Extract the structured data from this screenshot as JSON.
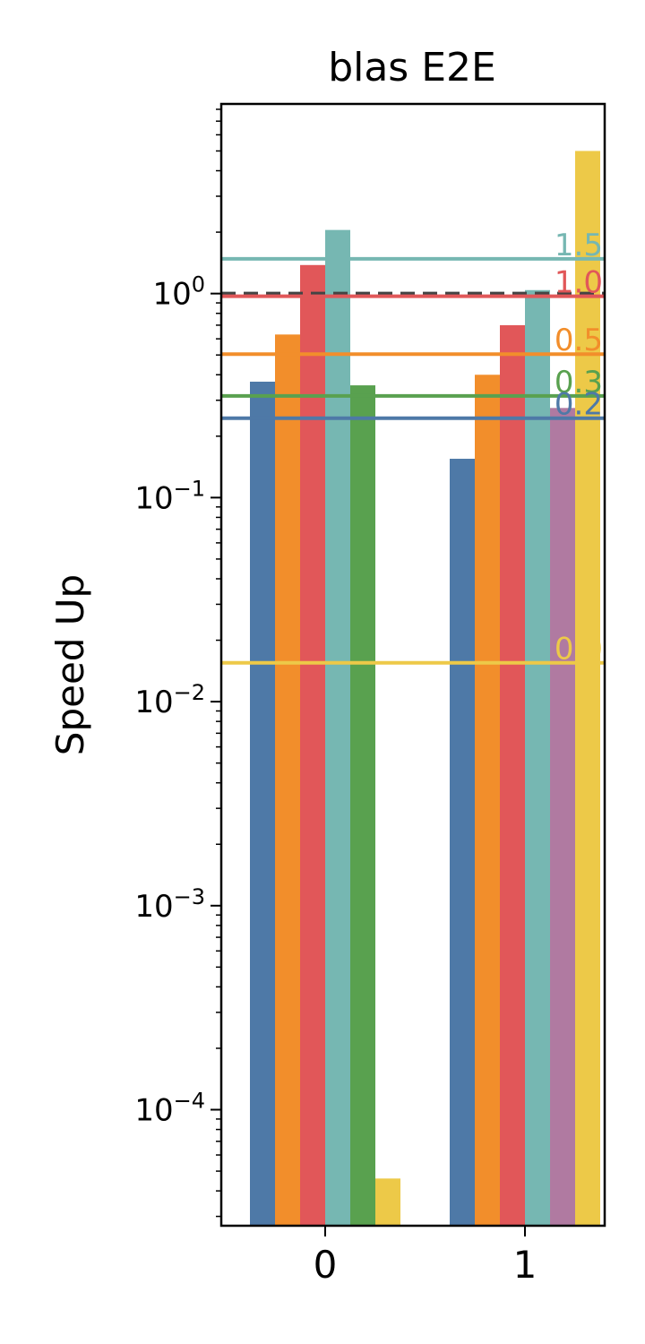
{
  "chart_data": {
    "type": "bar",
    "title": "blas E2E",
    "xlabel": "",
    "ylabel": "Speed Up",
    "y_scale": "log",
    "ylim": [
      2.7e-05,
      8.5
    ],
    "categories": [
      "0",
      "1"
    ],
    "y_ticks": [
      {
        "value": 1,
        "base": "10",
        "exp": "0"
      },
      {
        "value": 0.1,
        "base": "10",
        "exp": "−1"
      },
      {
        "value": 0.01,
        "base": "10",
        "exp": "−2"
      },
      {
        "value": 0.001,
        "base": "10",
        "exp": "−3"
      },
      {
        "value": 0.0001,
        "base": "10",
        "exp": "−4"
      }
    ],
    "series": [
      {
        "color": "#4e79a7",
        "values": [
          0.37,
          0.155
        ]
      },
      {
        "color": "#f28e2b",
        "values": [
          0.63,
          0.4
        ]
      },
      {
        "color": "#e15759",
        "values": [
          1.38,
          0.7
        ]
      },
      {
        "color": "#76b7b2",
        "values": [
          2.05,
          1.04
        ]
      },
      {
        "color": "#59a14f",
        "values": [
          0.355,
          null
        ]
      },
      {
        "color": "#b07aa1",
        "values": [
          null,
          0.275
        ]
      },
      {
        "color": "#edc948",
        "values": [
          4.6e-05,
          5.0
        ]
      }
    ],
    "reference_lines": [
      {
        "value": 1.0,
        "style": "dashed",
        "color": "#444444"
      },
      {
        "value": 1.48,
        "label": "1.5",
        "color": "#76b7b2"
      },
      {
        "value": 0.97,
        "label": "1.0",
        "color": "#e15759"
      },
      {
        "value": 0.505,
        "label": "0.5",
        "color": "#f28e2b"
      },
      {
        "value": 0.315,
        "label": "0.3",
        "color": "#59a14f"
      },
      {
        "value": 0.245,
        "label": "0.2",
        "color": "#4e79a7"
      },
      {
        "value": 0.0155,
        "label": "0.0",
        "color": "#edc948"
      }
    ],
    "grid": false,
    "legend": "none"
  }
}
